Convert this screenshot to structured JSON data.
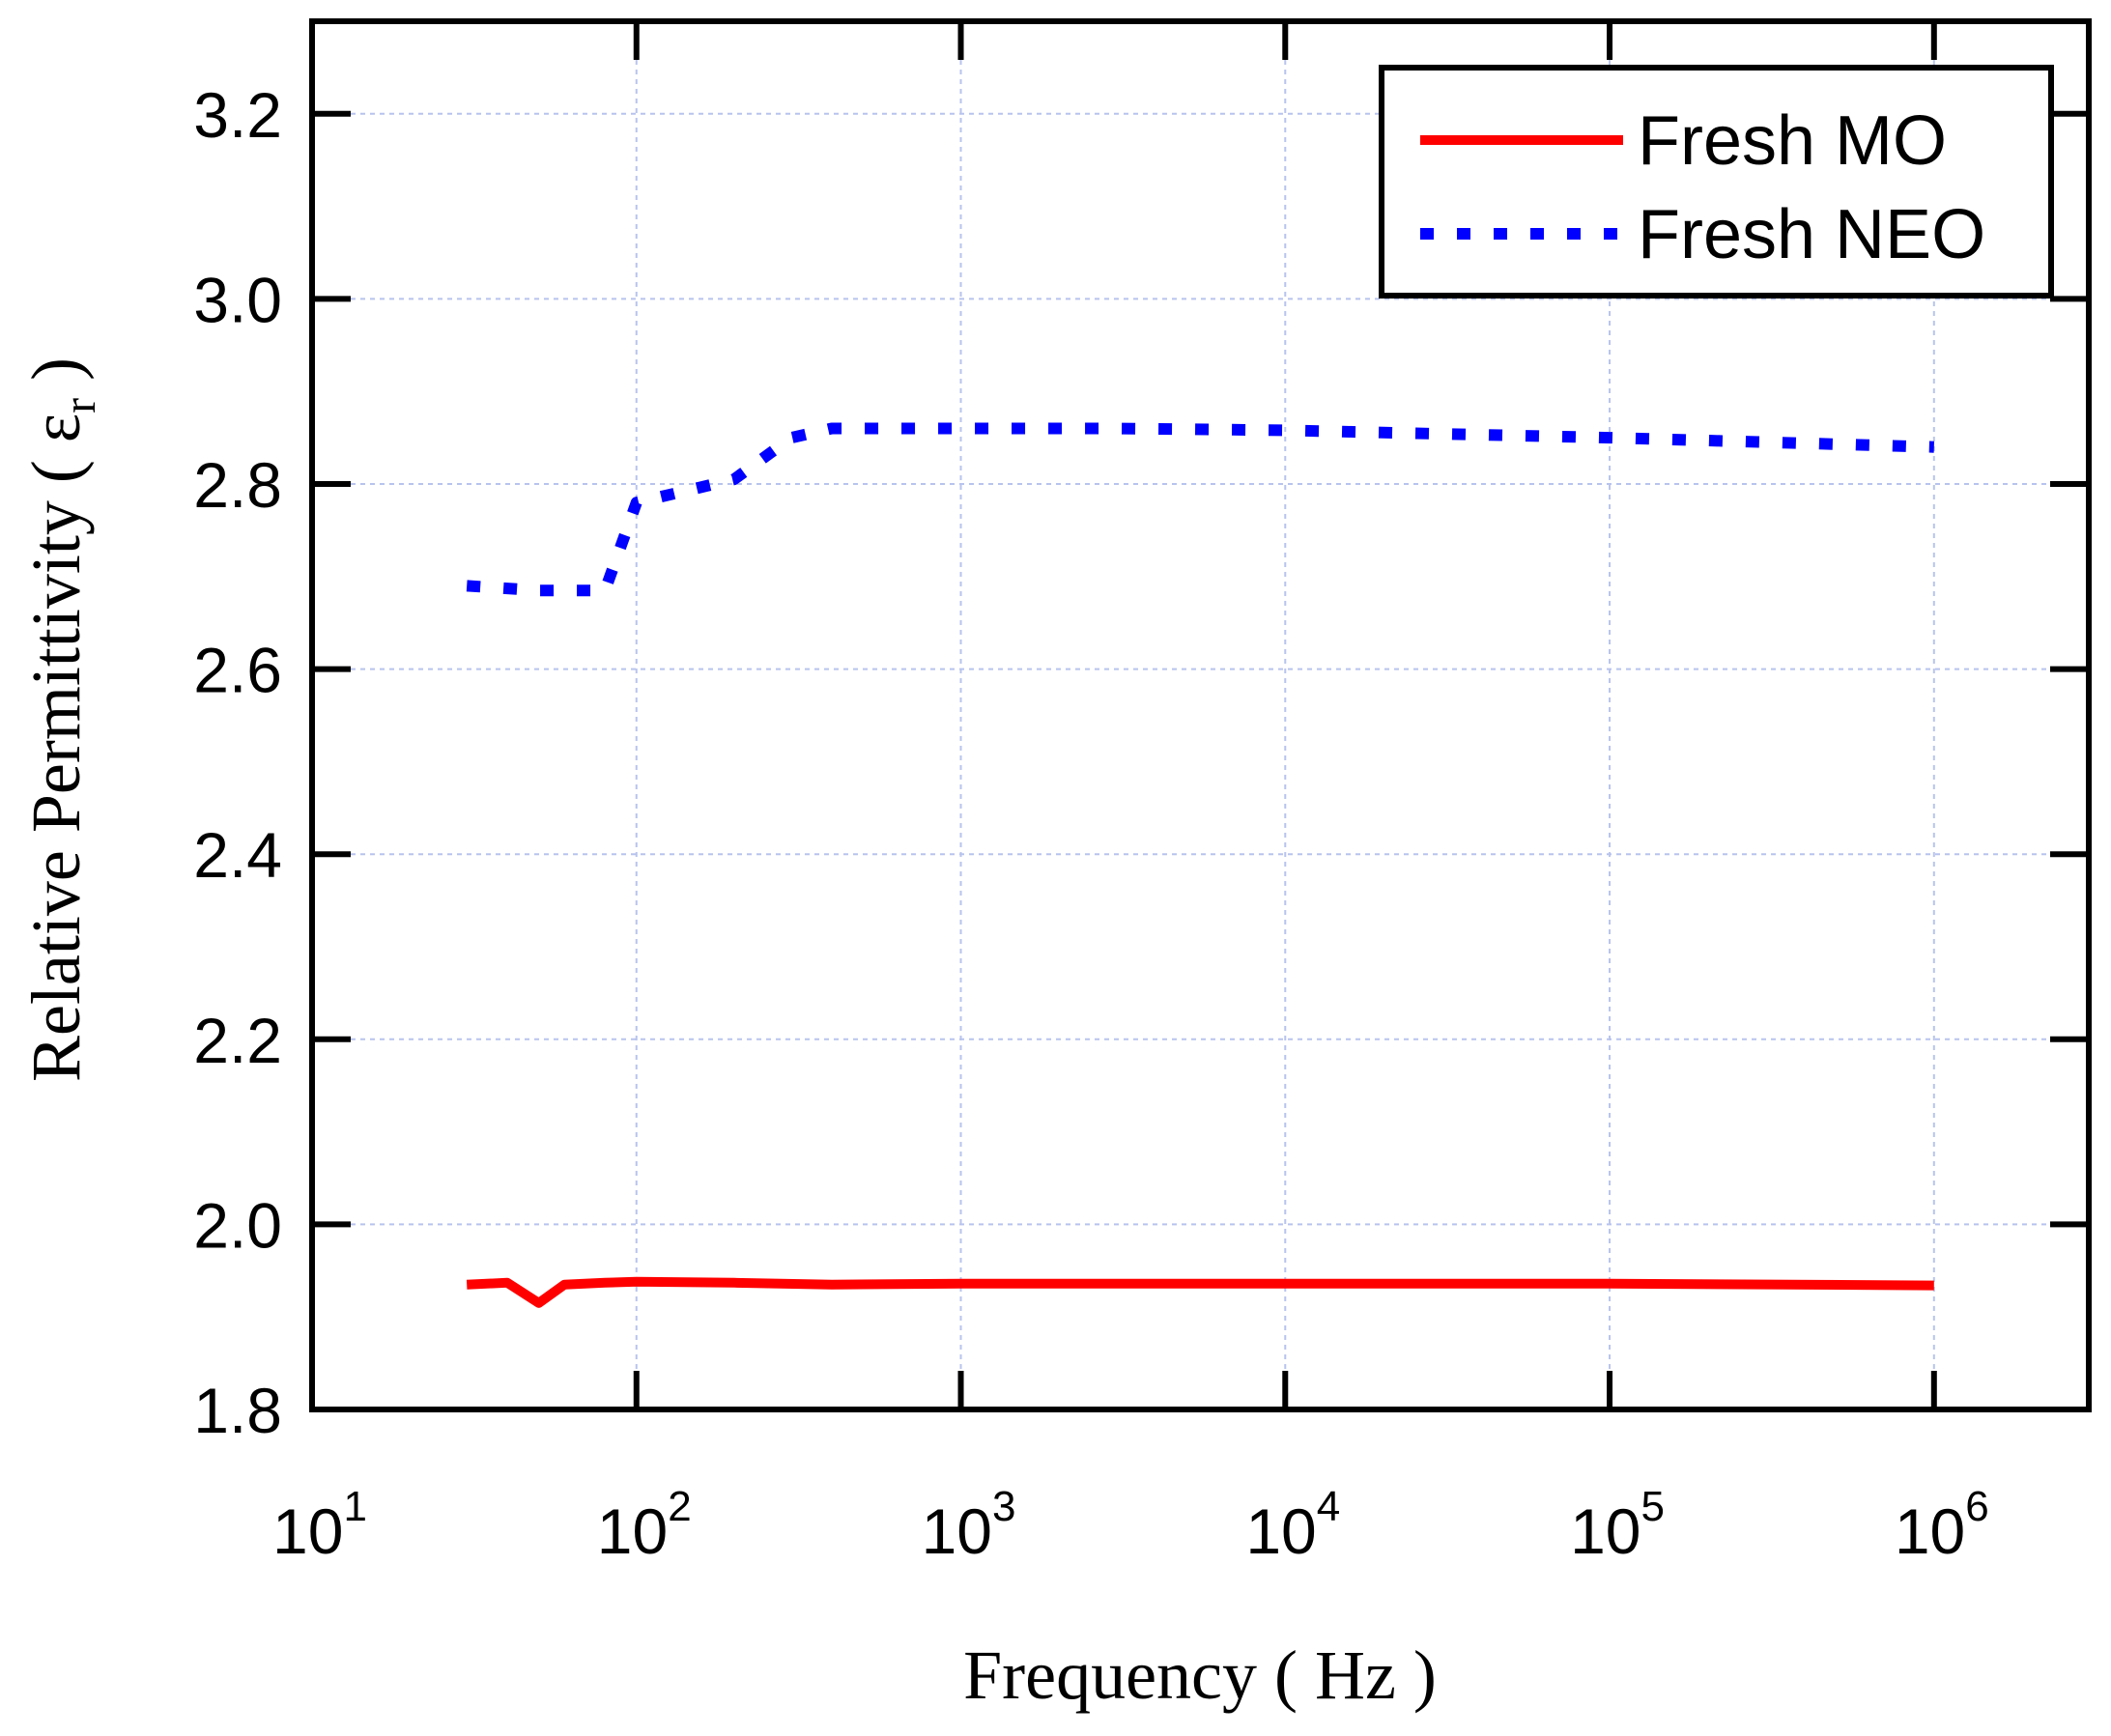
{
  "chart_data": {
    "type": "line",
    "xlabel": "Frequency ( Hz )",
    "ylabel": "Relative Permittivity ( ε",
    "ylabel_sub": "r",
    "ylabel_close": " )",
    "x_scale": "log",
    "xlim": [
      10,
      3000000
    ],
    "ylim": [
      1.8,
      3.3
    ],
    "grid": true,
    "legend_position": "top-right",
    "x_ticks": [
      {
        "value": 10,
        "base": "10",
        "exp": "1"
      },
      {
        "value": 100,
        "base": "10",
        "exp": "2"
      },
      {
        "value": 1000,
        "base": "10",
        "exp": "3"
      },
      {
        "value": 10000,
        "base": "10",
        "exp": "4"
      },
      {
        "value": 100000,
        "base": "10",
        "exp": "5"
      },
      {
        "value": 1000000,
        "base": "10",
        "exp": "6"
      }
    ],
    "y_ticks": [
      {
        "value": 1.8,
        "label": "1.8"
      },
      {
        "value": 2.0,
        "label": "2.0"
      },
      {
        "value": 2.2,
        "label": "2.2"
      },
      {
        "value": 2.4,
        "label": "2.4"
      },
      {
        "value": 2.6,
        "label": "2.6"
      },
      {
        "value": 2.8,
        "label": "2.8"
      },
      {
        "value": 3.0,
        "label": "3.0"
      },
      {
        "value": 3.2,
        "label": "3.2"
      }
    ],
    "series": [
      {
        "name": "Fresh MO",
        "color": "#ff0000",
        "style": "solid",
        "points": [
          [
            30,
            1.935
          ],
          [
            40,
            1.937
          ],
          [
            50,
            1.915
          ],
          [
            60,
            1.935
          ],
          [
            80,
            1.937
          ],
          [
            100,
            1.938
          ],
          [
            200,
            1.937
          ],
          [
            400,
            1.935
          ],
          [
            1000,
            1.936
          ],
          [
            10000,
            1.936
          ],
          [
            100000,
            1.936
          ],
          [
            1000000,
            1.934
          ]
        ]
      },
      {
        "name": "Fresh NEO",
        "color": "#0000ff",
        "style": "dotted",
        "points": [
          [
            30,
            2.69
          ],
          [
            50,
            2.685
          ],
          [
            80,
            2.685
          ],
          [
            100,
            2.78
          ],
          [
            200,
            2.805
          ],
          [
            300,
            2.85
          ],
          [
            400,
            2.86
          ],
          [
            1000,
            2.86
          ],
          [
            3000,
            2.86
          ],
          [
            10000,
            2.858
          ],
          [
            100000,
            2.85
          ],
          [
            1000000,
            2.84
          ]
        ]
      }
    ]
  }
}
